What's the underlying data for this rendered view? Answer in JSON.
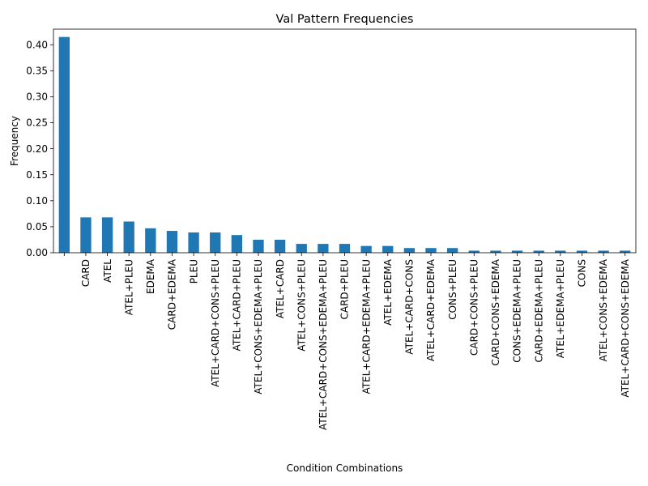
{
  "chart_data": {
    "type": "bar",
    "title": "Val Pattern Frequencies",
    "xlabel": "Condition Combinations",
    "ylabel": "Frequency",
    "ylim": [
      0,
      0.43
    ],
    "yticks": [
      0.0,
      0.05,
      0.1,
      0.15,
      0.2,
      0.25,
      0.3,
      0.35,
      0.4
    ],
    "ytick_labels": [
      "0.00",
      "0.05",
      "0.10",
      "0.15",
      "0.20",
      "0.25",
      "0.30",
      "0.35",
      "0.40"
    ],
    "grid": false,
    "bar_color": "#1f77b4",
    "categories": [
      "",
      "CARD",
      "ATEL",
      "ATEL+PLEU",
      "EDEMA",
      "CARD+EDEMA",
      "PLEU",
      "ATEL+CARD+CONS+PLEU",
      "ATEL+CARD+PLEU",
      "ATEL+CONS+EDEMA+PLEU",
      "ATEL+CARD",
      "ATEL+CONS+PLEU",
      "ATEL+CARD+CONS+EDEMA+PLEU",
      "CARD+PLEU",
      "ATEL+CARD+EDEMA+PLEU",
      "ATEL+EDEMA",
      "ATEL+CARD+CONS",
      "ATEL+CARD+EDEMA",
      "CONS+PLEU",
      "CARD+CONS+PLEU",
      "CARD+CONS+EDEMA",
      "CONS+EDEMA+PLEU",
      "CARD+EDEMA+PLEU",
      "ATEL+EDEMA+PLEU",
      "CONS",
      "ATEL+CONS+EDEMA",
      "ATEL+CARD+CONS+EDEMA"
    ],
    "values": [
      0.415,
      0.068,
      0.068,
      0.06,
      0.047,
      0.042,
      0.039,
      0.039,
      0.034,
      0.025,
      0.025,
      0.017,
      0.017,
      0.017,
      0.013,
      0.013,
      0.009,
      0.009,
      0.009,
      0.004,
      0.004,
      0.004,
      0.004,
      0.004,
      0.004,
      0.004,
      0.004
    ]
  }
}
